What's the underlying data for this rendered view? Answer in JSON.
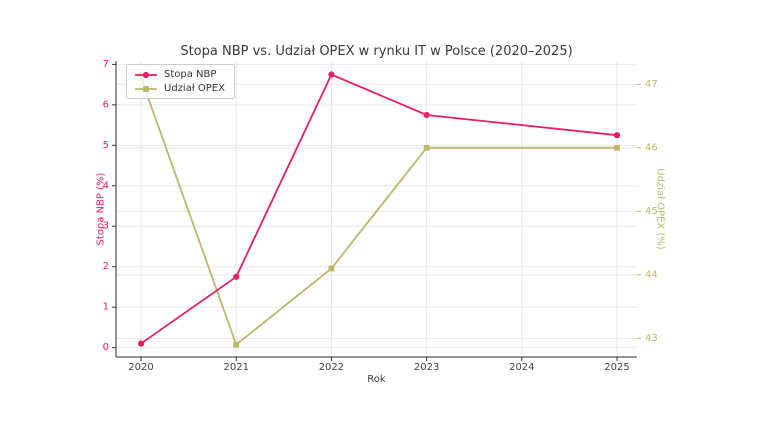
{
  "figure": {
    "background": "#ffffff"
  },
  "chart_data": {
    "type": "line",
    "title": "Stopa NBP vs. Udział OPEX w rynku IT w Polsce (2020–2025)",
    "xlabel": "Rok",
    "x": [
      2020,
      2021,
      2022,
      2023,
      2025
    ],
    "series": [
      {
        "name": "Stopa NBP",
        "axis": "left",
        "color": "#e91e63",
        "marker": "circle",
        "values": [
          0.1,
          1.75,
          6.75,
          5.75,
          5.25
        ]
      },
      {
        "name": "Udział OPEX",
        "axis": "right",
        "color": "#bdb76b",
        "marker": "square",
        "values": [
          47.1,
          42.9,
          44.1,
          46.0,
          46.0
        ]
      }
    ],
    "left_axis": {
      "label": "Stopa NBP (%)",
      "color": "#e91e63",
      "tick_mark_color": "#3a3a3a",
      "ticks": [
        0,
        1,
        2,
        3,
        4,
        5,
        6,
        7
      ],
      "range": [
        -0.232,
        7.084
      ]
    },
    "right_axis": {
      "label": "Udział OPEX (%)",
      "color": "#bdb76b",
      "tick_mark_color": "#bdb76b",
      "ticks": [
        43,
        44,
        45,
        46,
        47
      ],
      "range": [
        42.706,
        47.367
      ]
    },
    "x_axis": {
      "color": "#404040",
      "ticks": [
        2020,
        2021,
        2022,
        2023,
        2024,
        2025
      ],
      "range": [
        2019.737,
        2025.21
      ]
    },
    "legend": {
      "position": "upper left",
      "entries": [
        "Stopa NBP",
        "Udział OPEX"
      ]
    },
    "grid": true,
    "grid_color": "#e7e7e7",
    "spine_color": "#2b2b2b"
  }
}
